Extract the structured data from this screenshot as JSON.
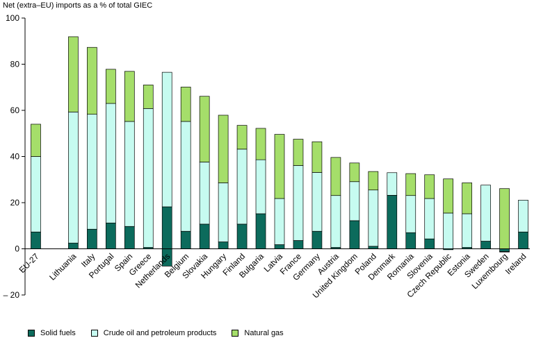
{
  "chart_data": {
    "type": "bar",
    "stacked": true,
    "title": "",
    "ylabel": "Net (extra–EU) imports as a % of total GIEC",
    "xlabel": "",
    "ylim": [
      -20,
      100
    ],
    "yticks": [
      -20,
      0,
      20,
      40,
      60,
      80,
      100
    ],
    "ytick_labels": [
      "– 20",
      "0",
      "20",
      "40",
      "60",
      "80",
      "100"
    ],
    "grid": false,
    "legend_position": "bottom",
    "categories": [
      "EU-27",
      "",
      "Lithuania",
      "Italy",
      "Portugal",
      "Spain",
      "Greece",
      "Netherlands",
      "Belgium",
      "Slovakia",
      "Hungary",
      "Finland",
      "Bulgaria",
      "Latvia",
      "France",
      "Germany",
      "Austria",
      "United Kingdom",
      "Poland",
      "Denmark",
      "Romania",
      "Slovenia",
      "Czech Republic",
      "Estonia",
      "Sweden",
      "Luxembourg",
      "Ireland"
    ],
    "series": [
      {
        "name": "Solid fuels",
        "color": "#0c6b5c",
        "values": [
          7.3,
          0,
          2.5,
          8.5,
          11.2,
          9.7,
          0.6,
          18.2,
          7.6,
          10.7,
          3.0,
          10.7,
          15.2,
          1.8,
          3.6,
          7.6,
          0.6,
          12.2,
          1.1,
          23.2,
          7.0,
          4.3,
          -0.4,
          0.6,
          3.3,
          -1.2,
          7.3
        ]
      },
      {
        "name": "Crude oil and petroleum products",
        "color": "#c6fbf0",
        "values": [
          32.7,
          0,
          56.8,
          49.8,
          51.8,
          45.5,
          60.2,
          58.3,
          47.6,
          26.9,
          25.6,
          32.5,
          23.4,
          20.0,
          32.5,
          25.5,
          22.5,
          16.9,
          24.4,
          9.8,
          16.1,
          17.5,
          15.5,
          14.6,
          24.3,
          -0.2,
          13.8
        ]
      },
      {
        "name": "Natural gas",
        "color": "#a5de6a",
        "values": [
          14.0,
          0,
          32.6,
          29.0,
          14.8,
          21.7,
          10.2,
          0,
          14.9,
          28.5,
          29.3,
          10.3,
          13.6,
          27.8,
          11.4,
          13.3,
          16.5,
          8.1,
          8.0,
          0,
          9.5,
          10.3,
          14.8,
          13.4,
          0,
          26.1,
          0
        ]
      }
    ],
    "negatives": {
      "Netherlands": -7.5
    }
  }
}
